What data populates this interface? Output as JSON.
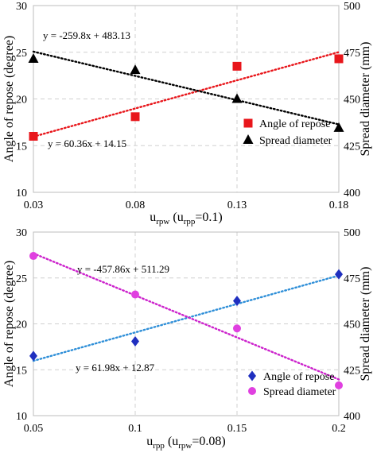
{
  "chart_data": [
    {
      "type": "scatter",
      "xlabel_main": "u",
      "xlabel_main_sub": "rpw",
      "xlabel_paren": " (u",
      "xlabel_paren_sub": "rpp",
      "xlabel_tail": "=0.1)",
      "ylabel": "Angle of repose (degree)",
      "y2label": "Spread diameter (mm)",
      "x_ticks": [
        0.03,
        0.08,
        0.13,
        0.18
      ],
      "x_tick_labels": [
        "0.03",
        "0.08",
        "0.13",
        "0.18"
      ],
      "xlim": [
        0.03,
        0.18
      ],
      "ylim": [
        10,
        30
      ],
      "y_ticks": [
        10,
        15,
        20,
        25,
        30
      ],
      "y2lim": [
        400,
        500
      ],
      "y2_ticks": [
        400,
        425,
        450,
        475,
        500
      ],
      "grid": true,
      "legend_position": "lower-right",
      "series": [
        {
          "name": "Angle of repose",
          "axis": "left",
          "marker": "square",
          "color": "#e8161b",
          "x": [
            0.03,
            0.08,
            0.13,
            0.18
          ],
          "y": [
            16.0,
            18.1,
            23.5,
            24.3
          ],
          "trend": {
            "slope": 60.36,
            "intercept": 14.15,
            "color": "#e8161b",
            "label": "y = 60.36x + 14.15"
          }
        },
        {
          "name": "Spread diameter",
          "axis": "right",
          "marker": "triangle",
          "color": "#000000",
          "x": [
            0.03,
            0.08,
            0.13,
            0.18
          ],
          "y": [
            471.5,
            465.5,
            450.0,
            434.5
          ],
          "trend": {
            "slope": -259.8,
            "intercept": 483.13,
            "color": "#000000",
            "label": "y = -259.8x + 483.13"
          }
        }
      ]
    },
    {
      "type": "scatter",
      "xlabel_main": "u",
      "xlabel_main_sub": "rpp",
      "xlabel_paren": " (u",
      "xlabel_paren_sub": "rpw",
      "xlabel_tail": "=0.08)",
      "ylabel": "Angle of repose (degree)",
      "y2label": "Spread diameter (mm)",
      "x_ticks": [
        0.05,
        0.1,
        0.15,
        0.2
      ],
      "x_tick_labels": [
        "0.05",
        "0.1",
        "0.15",
        "0.2"
      ],
      "xlim": [
        0.05,
        0.2
      ],
      "ylim": [
        10,
        30
      ],
      "y_ticks": [
        10,
        15,
        20,
        25,
        30
      ],
      "y2lim": [
        400,
        500
      ],
      "y2_ticks": [
        400,
        425,
        450,
        475,
        500
      ],
      "grid": true,
      "legend_position": "lower-right",
      "series": [
        {
          "name": "Angle of repose",
          "axis": "left",
          "marker": "diamond",
          "color": "#1f2fbf",
          "x": [
            0.05,
            0.1,
            0.15,
            0.2
          ],
          "y": [
            16.5,
            18.1,
            22.5,
            25.4
          ],
          "trend": {
            "slope": 61.98,
            "intercept": 12.87,
            "color": "#2f8fd8",
            "label": "y = 61.98x + 12.87"
          }
        },
        {
          "name": "Spread diameter",
          "axis": "right",
          "marker": "circle",
          "color": "#e040e0",
          "x": [
            0.05,
            0.1,
            0.15,
            0.2
          ],
          "y": [
            487.0,
            466.0,
            447.5,
            416.5
          ],
          "trend": {
            "slope": -457.86,
            "intercept": 511.29,
            "color": "#cc22cc",
            "label": "y = -457.86x + 511.29"
          }
        }
      ]
    }
  ]
}
